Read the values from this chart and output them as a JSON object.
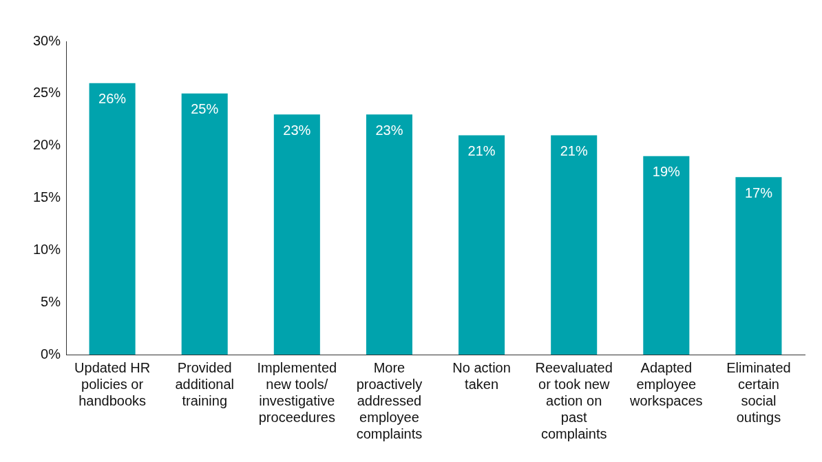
{
  "chart_data": {
    "type": "bar",
    "categories": [
      "Updated HR policies or handbooks",
      "Provided additional training",
      "Implemented new tools/ investigative proceedures",
      "More proactively addressed employee complaints",
      "No action taken",
      "Reevaluated or took new action on past complaints",
      "Adapted employee workspaces",
      "Eliminated certain social outings"
    ],
    "values": [
      26,
      25,
      23,
      23,
      21,
      21,
      19,
      17
    ],
    "value_labels": [
      "26%",
      "25%",
      "23%",
      "23%",
      "21%",
      "21%",
      "19%",
      "17%"
    ],
    "color": "#00a3ad",
    "ylim": [
      0,
      30
    ],
    "yticks": [
      {
        "value": 0,
        "label": "0%"
      },
      {
        "value": 5,
        "label": "5%"
      },
      {
        "value": 10,
        "label": "10%"
      },
      {
        "value": 15,
        "label": "15%"
      },
      {
        "value": 20,
        "label": "20%"
      },
      {
        "value": 25,
        "label": "25%"
      },
      {
        "value": 30,
        "label": "30%"
      }
    ],
    "grid": false,
    "legend": false
  }
}
